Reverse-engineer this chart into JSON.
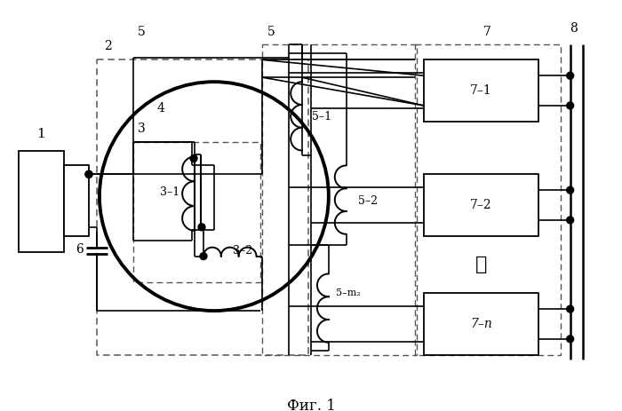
{
  "bg_color": "#ffffff",
  "line_color": "#000000",
  "title": "Фиг. 1",
  "fig_width": 7.0,
  "fig_height": 4.63,
  "dpi": 100
}
